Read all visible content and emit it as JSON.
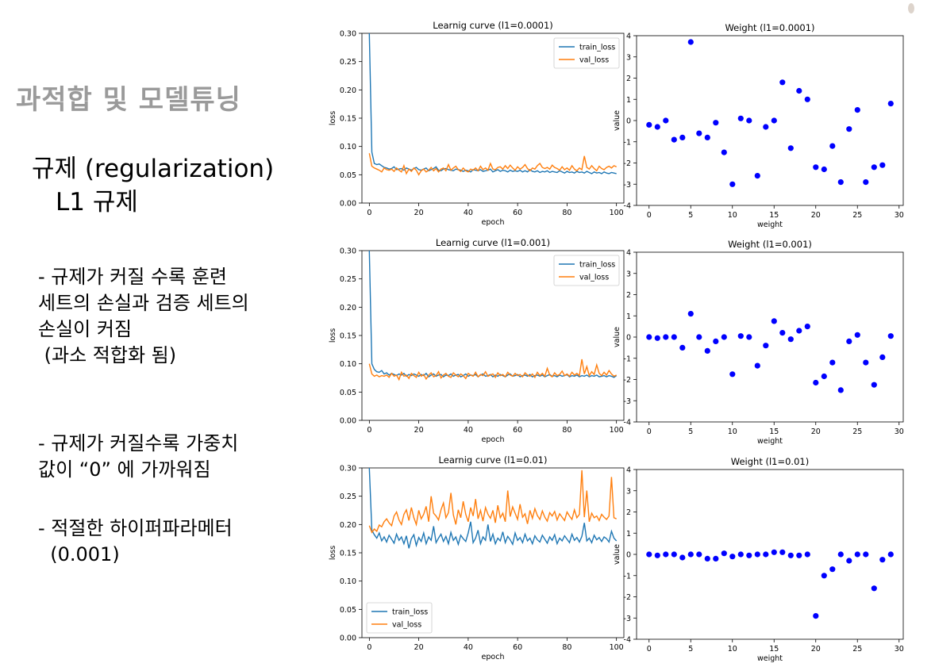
{
  "slide": {
    "title": "과적합 및 모델튜닝",
    "heading_line1": "규제 (regularization)",
    "heading_line2": "L1 규제",
    "bullets": [
      {
        "lines": [
          "- 규제가 커질 수록  훈련",
          "세트의 손실과 검증 세트의",
          "손실이 커짐",
          " (과소 적합화 됨)"
        ]
      },
      {
        "lines": [
          "- 규제가 커질수록 가중치",
          "값이 “0” 에 가까워짐"
        ]
      },
      {
        "lines": [
          "- 적절한 하이퍼파라메터",
          "  (0.001)"
        ]
      }
    ]
  },
  "colors": {
    "train": "#1f77b4",
    "val": "#ff7f0e",
    "weight": "#0000ff",
    "axis": "#000000",
    "title_gray": "#9a9a9a"
  },
  "chart_data": [
    {
      "type": "line",
      "title": "Learnig curve (l1=0.0001)",
      "xlabel": "epoch",
      "ylabel": "loss",
      "xlim": [
        -3,
        103
      ],
      "ylim": [
        0,
        0.3
      ],
      "xticks": [
        0,
        20,
        40,
        60,
        80,
        100
      ],
      "yticks": [
        0.0,
        0.05,
        0.1,
        0.15,
        0.2,
        0.25,
        0.3
      ],
      "legend": "top-right",
      "series": [
        {
          "name": "train_loss",
          "values": [
            0.3,
            0.09,
            0.07,
            0.068,
            0.069,
            0.066,
            0.063,
            0.062,
            0.06,
            0.061,
            0.064,
            0.059,
            0.06,
            0.061,
            0.058,
            0.062,
            0.06,
            0.058,
            0.061,
            0.063,
            0.059,
            0.058,
            0.06,
            0.062,
            0.057,
            0.059,
            0.061,
            0.064,
            0.058,
            0.057,
            0.06,
            0.061,
            0.059,
            0.058,
            0.057,
            0.06,
            0.059,
            0.058,
            0.056,
            0.058,
            0.057,
            0.055,
            0.059,
            0.058,
            0.057,
            0.059,
            0.056,
            0.057,
            0.058,
            0.06,
            0.055,
            0.057,
            0.059,
            0.056,
            0.058,
            0.057,
            0.055,
            0.058,
            0.056,
            0.057,
            0.056,
            0.058,
            0.055,
            0.057,
            0.055,
            0.059,
            0.056,
            0.055,
            0.057,
            0.054,
            0.056,
            0.055,
            0.057,
            0.054,
            0.056,
            0.055,
            0.054,
            0.057,
            0.055,
            0.053,
            0.056,
            0.054,
            0.055,
            0.053,
            0.056,
            0.054,
            0.055,
            0.053,
            0.056,
            0.054,
            0.052,
            0.055,
            0.053,
            0.054,
            0.052,
            0.055,
            0.053,
            0.052,
            0.054,
            0.053,
            0.052
          ]
        },
        {
          "name": "val_loss",
          "values": [
            0.088,
            0.065,
            0.062,
            0.06,
            0.058,
            0.055,
            0.062,
            0.059,
            0.058,
            0.06,
            0.056,
            0.062,
            0.058,
            0.055,
            0.066,
            0.052,
            0.06,
            0.056,
            0.062,
            0.058,
            0.05,
            0.057,
            0.06,
            0.055,
            0.058,
            0.063,
            0.057,
            0.061,
            0.055,
            0.06,
            0.062,
            0.057,
            0.068,
            0.058,
            0.062,
            0.065,
            0.059,
            0.056,
            0.062,
            0.057,
            0.055,
            0.06,
            0.058,
            0.062,
            0.057,
            0.065,
            0.059,
            0.062,
            0.058,
            0.07,
            0.06,
            0.059,
            0.063,
            0.064,
            0.06,
            0.066,
            0.061,
            0.067,
            0.062,
            0.058,
            0.064,
            0.06,
            0.063,
            0.068,
            0.061,
            0.057,
            0.062,
            0.06,
            0.066,
            0.07,
            0.063,
            0.061,
            0.063,
            0.06,
            0.067,
            0.063,
            0.061,
            0.058,
            0.064,
            0.059,
            0.062,
            0.058,
            0.066,
            0.06,
            0.057,
            0.062,
            0.059,
            0.083,
            0.063,
            0.06,
            0.066,
            0.061,
            0.057,
            0.065,
            0.061,
            0.059,
            0.063,
            0.065,
            0.062,
            0.066,
            0.064
          ]
        }
      ]
    },
    {
      "type": "scatter",
      "title": "Weight (l1=0.0001)",
      "xlabel": "weight",
      "ylabel": "value",
      "xlim": [
        -1.5,
        30.5
      ],
      "ylim": [
        -4,
        4
      ],
      "xticks": [
        0,
        5,
        10,
        15,
        20,
        25,
        30
      ],
      "yticks": [
        -4,
        -3,
        -2,
        -1,
        0,
        1,
        2,
        3,
        4
      ],
      "x": [
        0,
        1,
        2,
        3,
        4,
        5,
        6,
        7,
        8,
        9,
        10,
        11,
        12,
        13,
        14,
        15,
        16,
        17,
        18,
        19,
        20,
        21,
        22,
        23,
        24,
        25,
        26,
        27,
        28,
        29
      ],
      "y": [
        -0.2,
        -0.3,
        0.0,
        -0.9,
        -0.8,
        3.7,
        -0.6,
        -0.8,
        -0.1,
        -1.5,
        -3.0,
        0.1,
        0.0,
        -2.6,
        -0.3,
        0.0,
        1.8,
        -1.3,
        1.4,
        1.0,
        -2.2,
        -2.3,
        -1.2,
        -2.9,
        -0.4,
        0.5,
        -2.9,
        -2.2,
        -2.1,
        0.8
      ]
    },
    {
      "type": "line",
      "title": "Learnig curve (l1=0.001)",
      "xlabel": "epoch",
      "ylabel": "loss",
      "xlim": [
        -3,
        103
      ],
      "ylim": [
        0,
        0.3
      ],
      "xticks": [
        0,
        20,
        40,
        60,
        80,
        100
      ],
      "yticks": [
        0.0,
        0.05,
        0.1,
        0.15,
        0.2,
        0.25,
        0.3
      ],
      "legend": "top-right",
      "series": [
        {
          "name": "train_loss",
          "values": [
            0.3,
            0.1,
            0.09,
            0.086,
            0.085,
            0.088,
            0.082,
            0.084,
            0.08,
            0.083,
            0.081,
            0.079,
            0.082,
            0.08,
            0.083,
            0.078,
            0.081,
            0.079,
            0.082,
            0.08,
            0.078,
            0.081,
            0.079,
            0.083,
            0.077,
            0.08,
            0.082,
            0.078,
            0.08,
            0.081,
            0.077,
            0.08,
            0.079,
            0.082,
            0.078,
            0.08,
            0.081,
            0.077,
            0.079,
            0.082,
            0.078,
            0.08,
            0.079,
            0.081,
            0.077,
            0.08,
            0.082,
            0.078,
            0.079,
            0.081,
            0.077,
            0.08,
            0.078,
            0.081,
            0.079,
            0.077,
            0.08,
            0.082,
            0.078,
            0.079,
            0.081,
            0.077,
            0.079,
            0.08,
            0.078,
            0.081,
            0.077,
            0.079,
            0.08,
            0.078,
            0.08,
            0.077,
            0.079,
            0.081,
            0.078,
            0.079,
            0.077,
            0.08,
            0.078,
            0.079,
            0.081,
            0.077,
            0.079,
            0.078,
            0.08,
            0.077,
            0.079,
            0.078,
            0.08,
            0.077,
            0.079,
            0.078,
            0.08,
            0.077,
            0.078,
            0.079,
            0.077,
            0.079,
            0.078,
            0.076,
            0.079
          ]
        },
        {
          "name": "val_loss",
          "values": [
            0.1,
            0.082,
            0.078,
            0.08,
            0.077,
            0.079,
            0.078,
            0.08,
            0.076,
            0.083,
            0.078,
            0.08,
            0.072,
            0.085,
            0.078,
            0.08,
            0.074,
            0.083,
            0.079,
            0.076,
            0.085,
            0.078,
            0.081,
            0.073,
            0.08,
            0.084,
            0.077,
            0.079,
            0.086,
            0.075,
            0.08,
            0.083,
            0.078,
            0.076,
            0.084,
            0.08,
            0.077,
            0.082,
            0.079,
            0.074,
            0.083,
            0.08,
            0.078,
            0.085,
            0.077,
            0.081,
            0.079,
            0.086,
            0.078,
            0.08,
            0.082,
            0.076,
            0.084,
            0.079,
            0.081,
            0.077,
            0.085,
            0.08,
            0.078,
            0.083,
            0.079,
            0.081,
            0.077,
            0.084,
            0.08,
            0.078,
            0.082,
            0.076,
            0.085,
            0.079,
            0.083,
            0.078,
            0.092,
            0.08,
            0.077,
            0.084,
            0.079,
            0.081,
            0.087,
            0.079,
            0.082,
            0.078,
            0.085,
            0.08,
            0.083,
            0.079,
            0.108,
            0.082,
            0.095,
            0.079,
            0.086,
            0.081,
            0.098,
            0.083,
            0.079,
            0.085,
            0.08,
            0.088,
            0.082,
            0.078,
            0.08
          ]
        }
      ]
    },
    {
      "type": "scatter",
      "title": "Weight (l1=0.001)",
      "xlabel": "weight",
      "ylabel": "value",
      "xlim": [
        -1.5,
        30.5
      ],
      "ylim": [
        -4,
        4
      ],
      "xticks": [
        0,
        5,
        10,
        15,
        20,
        25,
        30
      ],
      "yticks": [
        -4,
        -3,
        -2,
        -1,
        0,
        1,
        2,
        3,
        4
      ],
      "x": [
        0,
        1,
        2,
        3,
        4,
        5,
        6,
        7,
        8,
        9,
        10,
        11,
        12,
        13,
        14,
        15,
        16,
        17,
        18,
        19,
        20,
        21,
        22,
        23,
        24,
        25,
        26,
        27,
        28,
        29
      ],
      "y": [
        0.0,
        -0.05,
        0.0,
        0.0,
        -0.5,
        1.1,
        0.0,
        -0.65,
        -0.2,
        0.0,
        -1.75,
        0.05,
        0.0,
        -1.35,
        -0.4,
        0.75,
        0.2,
        -0.1,
        0.3,
        0.5,
        -2.15,
        -1.85,
        -1.2,
        -2.5,
        -0.2,
        0.1,
        -1.2,
        -2.25,
        -0.95,
        0.05
      ]
    },
    {
      "type": "line",
      "title": "Learnig curve (l1=0.01)",
      "xlabel": "epoch",
      "ylabel": "loss",
      "xlim": [
        -3,
        103
      ],
      "ylim": [
        0,
        0.3
      ],
      "xticks": [
        0,
        20,
        40,
        60,
        80,
        100
      ],
      "yticks": [
        0.0,
        0.05,
        0.1,
        0.15,
        0.2,
        0.25,
        0.3
      ],
      "legend": "bottom-left",
      "series": [
        {
          "name": "train_loss",
          "values": [
            0.3,
            0.19,
            0.182,
            0.176,
            0.185,
            0.171,
            0.178,
            0.169,
            0.181,
            0.174,
            0.167,
            0.183,
            0.172,
            0.178,
            0.166,
            0.18,
            0.158,
            0.175,
            0.182,
            0.163,
            0.177,
            0.17,
            0.185,
            0.166,
            0.178,
            0.172,
            0.197,
            0.168,
            0.176,
            0.183,
            0.17,
            0.179,
            0.166,
            0.186,
            0.172,
            0.178,
            0.165,
            0.181,
            0.175,
            0.17,
            0.185,
            0.205,
            0.168,
            0.176,
            0.19,
            0.166,
            0.178,
            0.172,
            0.2,
            0.17,
            0.183,
            0.166,
            0.176,
            0.171,
            0.187,
            0.168,
            0.179,
            0.173,
            0.165,
            0.185,
            0.172,
            0.177,
            0.168,
            0.183,
            0.171,
            0.176,
            0.166,
            0.18,
            0.173,
            0.169,
            0.181,
            0.174,
            0.167,
            0.178,
            0.172,
            0.182,
            0.166,
            0.176,
            0.171,
            0.18,
            0.174,
            0.168,
            0.183,
            0.172,
            0.177,
            0.169,
            0.179,
            0.203,
            0.171,
            0.176,
            0.168,
            0.181,
            0.173,
            0.177,
            0.17,
            0.178,
            0.175,
            0.169,
            0.188,
            0.176,
            0.171
          ]
        },
        {
          "name": "val_loss",
          "values": [
            0.198,
            0.186,
            0.192,
            0.188,
            0.199,
            0.196,
            0.205,
            0.21,
            0.203,
            0.198,
            0.215,
            0.222,
            0.208,
            0.2,
            0.218,
            0.226,
            0.207,
            0.23,
            0.212,
            0.2,
            0.225,
            0.21,
            0.218,
            0.232,
            0.205,
            0.25,
            0.22,
            0.215,
            0.208,
            0.226,
            0.238,
            0.212,
            0.221,
            0.256,
            0.217,
            0.2,
            0.226,
            0.212,
            0.241,
            0.218,
            0.205,
            0.23,
            0.215,
            0.245,
            0.21,
            0.225,
            0.206,
            0.23,
            0.218,
            0.211,
            0.225,
            0.203,
            0.234,
            0.212,
            0.22,
            0.205,
            0.26,
            0.214,
            0.231,
            0.22,
            0.209,
            0.236,
            0.213,
            0.219,
            0.201,
            0.225,
            0.211,
            0.228,
            0.216,
            0.209,
            0.224,
            0.213,
            0.206,
            0.221,
            0.215,
            0.223,
            0.208,
            0.219,
            0.213,
            0.207,
            0.222,
            0.215,
            0.209,
            0.226,
            0.212,
            0.218,
            0.296,
            0.213,
            0.26,
            0.205,
            0.22,
            0.212,
            0.215,
            0.207,
            0.218,
            0.213,
            0.209,
            0.215,
            0.284,
            0.212,
            0.21
          ]
        }
      ]
    },
    {
      "type": "scatter",
      "title": "Weight (l1=0.01)",
      "xlabel": "weight",
      "ylabel": "value",
      "xlim": [
        -1.5,
        30.5
      ],
      "ylim": [
        -4,
        4
      ],
      "xticks": [
        0,
        5,
        10,
        15,
        20,
        25,
        30
      ],
      "yticks": [
        -4,
        -3,
        -2,
        -1,
        0,
        1,
        2,
        3,
        4
      ],
      "x": [
        0,
        1,
        2,
        3,
        4,
        5,
        6,
        7,
        8,
        9,
        10,
        11,
        12,
        13,
        14,
        15,
        16,
        17,
        18,
        19,
        20,
        21,
        22,
        23,
        24,
        25,
        26,
        27,
        28,
        29
      ],
      "y": [
        0.0,
        -0.05,
        0.0,
        0.0,
        -0.15,
        0.0,
        0.0,
        -0.2,
        -0.2,
        0.05,
        -0.1,
        0.0,
        -0.05,
        0.0,
        0.0,
        0.1,
        0.1,
        -0.05,
        -0.05,
        0.0,
        -2.9,
        -1.0,
        -0.7,
        0.0,
        -0.3,
        0.0,
        0.0,
        -1.6,
        -0.25,
        0.0
      ]
    }
  ]
}
